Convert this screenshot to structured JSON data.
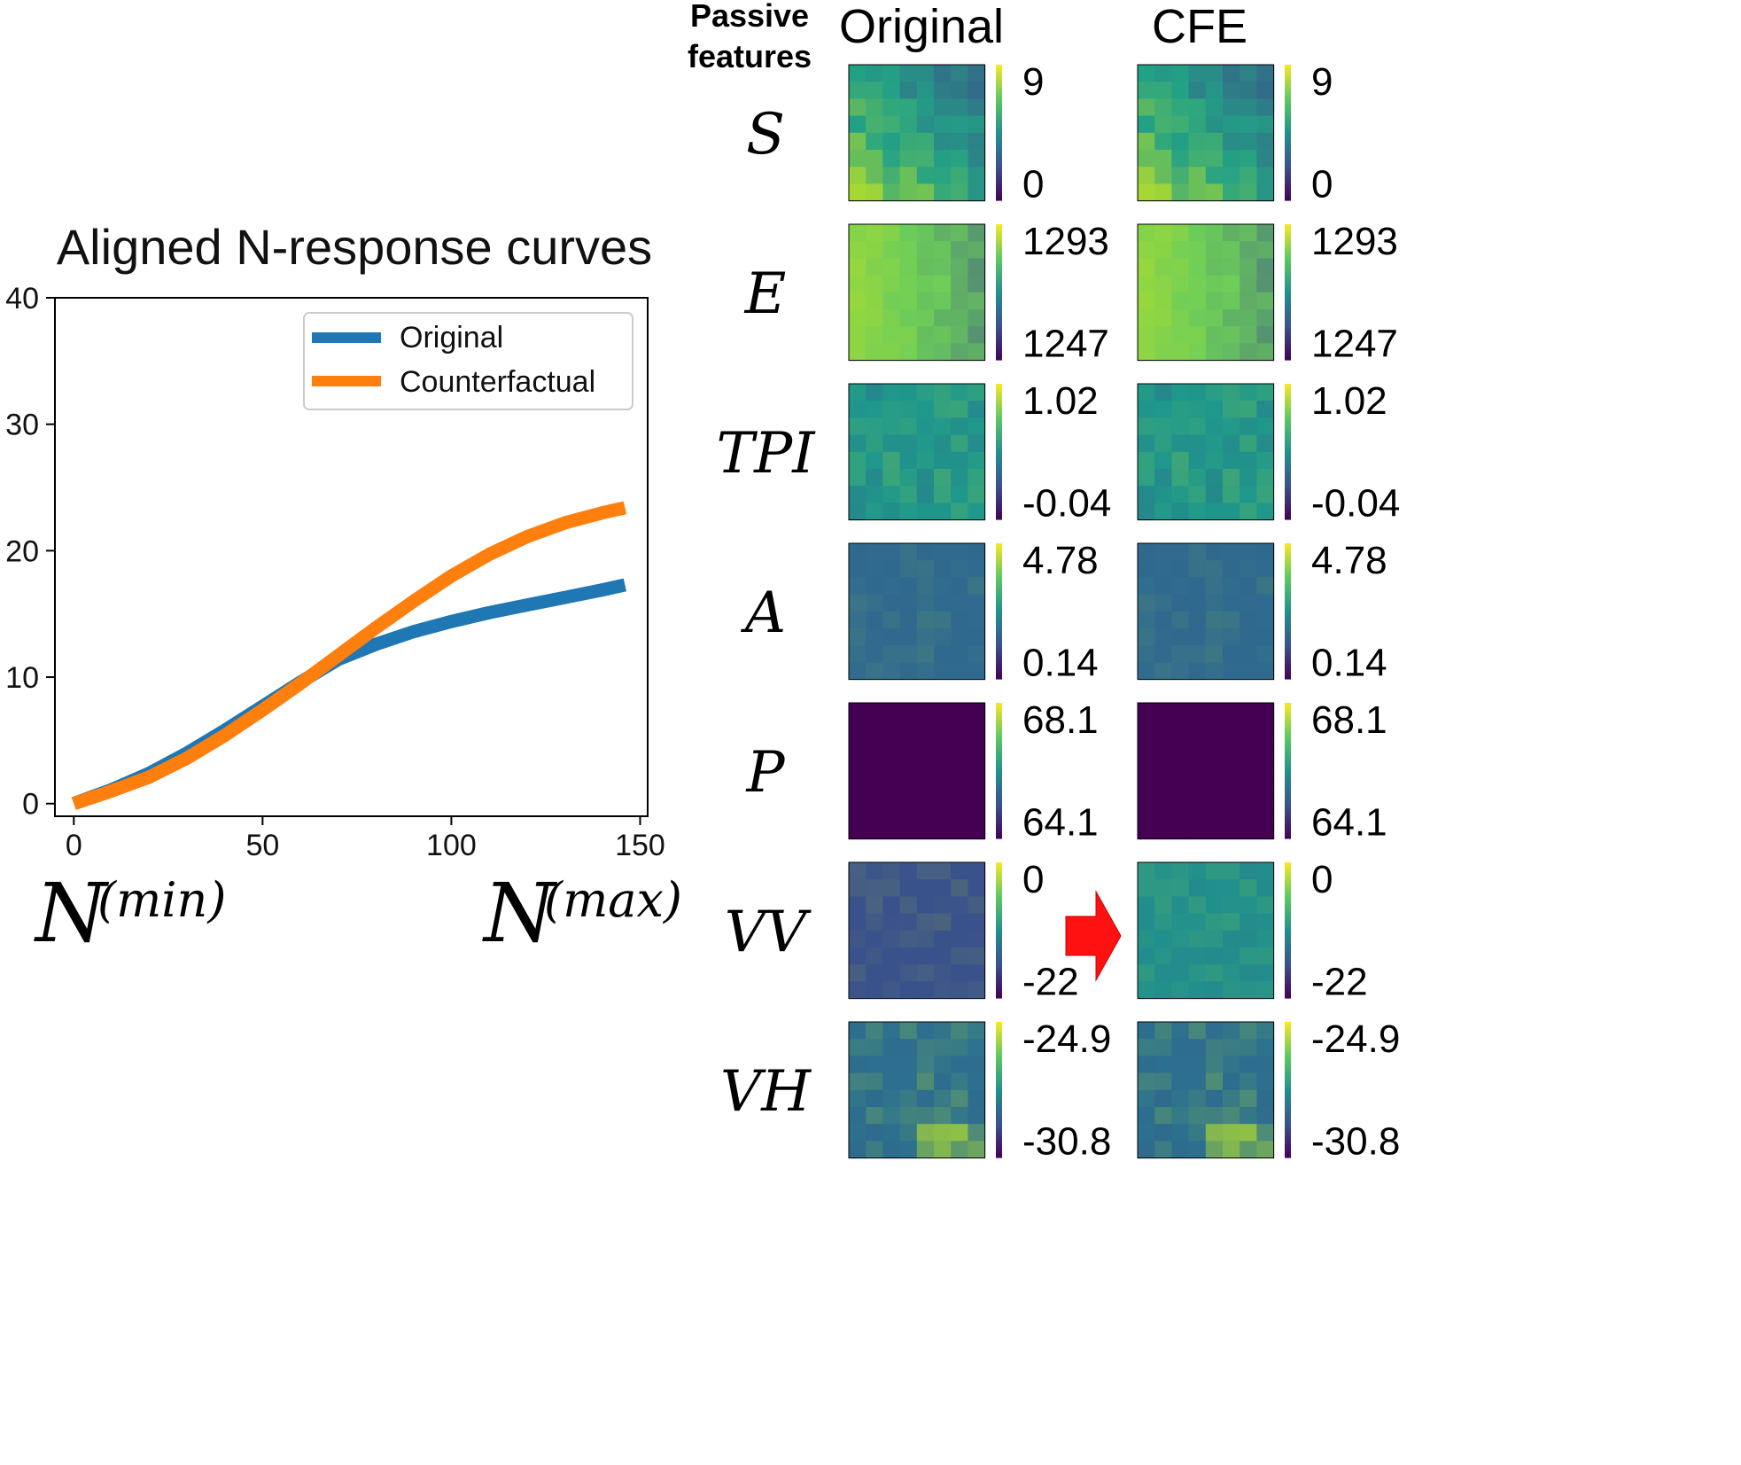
{
  "chart_data": {
    "type": "line",
    "title": "Aligned N-response curves",
    "xlabel": "",
    "ylabel": "",
    "xlim": [
      -5,
      152
    ],
    "ylim": [
      -1,
      40
    ],
    "x_ticks": [
      "0",
      "50",
      "100",
      "150"
    ],
    "y_ticks": [
      "0",
      "10",
      "20",
      "30",
      "40"
    ],
    "x_annotation_left": "N",
    "x_annotation_left_sup": "(min)",
    "x_annotation_right": "N",
    "x_annotation_right_sup": "(max)",
    "legend_position": "top-right",
    "series": [
      {
        "name": "Original",
        "color": "#1f77b4",
        "x": [
          0,
          10,
          20,
          30,
          40,
          50,
          60,
          70,
          80,
          90,
          100,
          110,
          120,
          130,
          140,
          146
        ],
        "y": [
          0,
          1.1,
          2.4,
          4.0,
          5.8,
          7.7,
          9.6,
          11.4,
          12.6,
          13.6,
          14.4,
          15.1,
          15.7,
          16.3,
          16.9,
          17.3
        ]
      },
      {
        "name": "Counterfactual",
        "color": "#ff7f0e",
        "x": [
          0,
          10,
          20,
          30,
          40,
          50,
          60,
          70,
          80,
          90,
          100,
          110,
          120,
          130,
          140,
          146
        ],
        "y": [
          0,
          1.0,
          2.1,
          3.6,
          5.4,
          7.4,
          9.5,
          11.7,
          13.9,
          16.0,
          18.0,
          19.7,
          21.1,
          22.2,
          23.0,
          23.4
        ]
      }
    ]
  },
  "heatmaps": {
    "header_label": "Passive features",
    "col_original": "Original",
    "col_cfe": "CFE",
    "rows": [
      {
        "feature": "S",
        "max": "9",
        "min": "0",
        "base": "#23a185",
        "contrast": 1.0
      },
      {
        "feature": "E",
        "max": "1293",
        "min": "1247",
        "base": "#6cce59",
        "contrast": 0.6
      },
      {
        "feature": "TPI",
        "max": "1.02",
        "min": "-0.04",
        "base": "#1f988b",
        "contrast": 0.9
      },
      {
        "feature": "A",
        "max": "4.78",
        "min": "0.14",
        "base": "#2f6b8e",
        "contrast": 0.4
      },
      {
        "feature": "P",
        "max": "68.1",
        "min": "64.1",
        "base": "#440154",
        "contrast": 0.0
      },
      {
        "feature": "VV",
        "max": "0",
        "min": "-22",
        "base": "#3a528b",
        "base_cfe": "#21918c",
        "contrast": 0.5
      },
      {
        "feature": "VH",
        "max": "-24.9",
        "min": "-30.8",
        "base": "#2c718e",
        "contrast": 1.0
      }
    ]
  }
}
